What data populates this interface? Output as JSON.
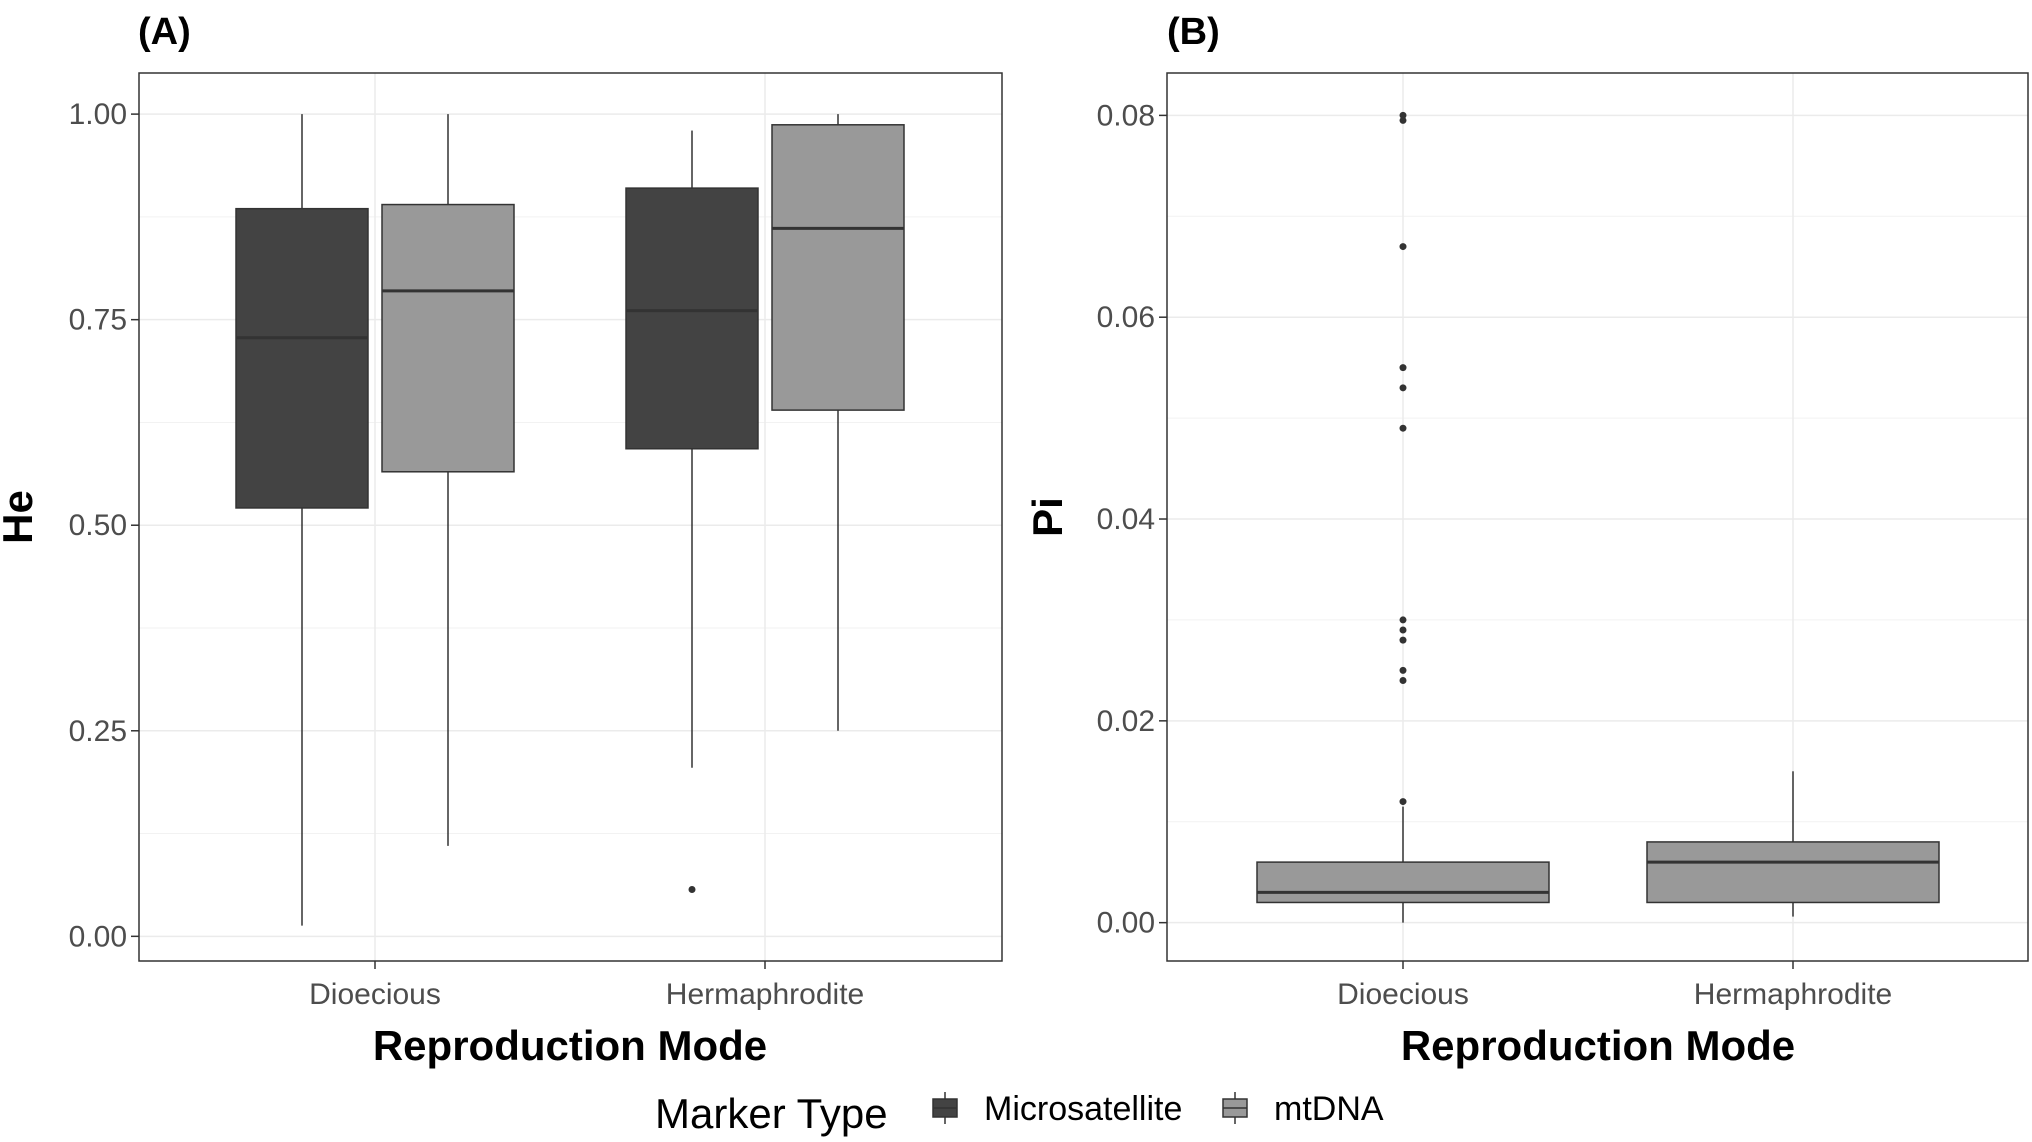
{
  "chart_data": [
    {
      "type": "boxplot",
      "panel_label": "(A)",
      "xlabel": "Reproduction Mode",
      "ylabel": "He",
      "ylim": [
        -0.03,
        1.05
      ],
      "yticks": [
        0.0,
        0.25,
        0.5,
        0.75,
        1.0
      ],
      "ytick_labels": [
        "0.00",
        "0.25",
        "0.50",
        "0.75",
        "1.00"
      ],
      "categories": [
        "Dioecious",
        "Hermaphrodite"
      ],
      "grid": true,
      "series": [
        {
          "name": "Microsatellite",
          "color": "#434343",
          "boxes": [
            {
              "whisker_low": 0.013,
              "q1": 0.521,
              "median": 0.728,
              "q3": 0.885,
              "whisker_high": 1.0,
              "outliers": []
            },
            {
              "whisker_low": 0.205,
              "q1": 0.593,
              "median": 0.761,
              "q3": 0.91,
              "whisker_high": 0.98,
              "outliers": [
                0.057
              ]
            }
          ]
        },
        {
          "name": "mtDNA",
          "color": "#999999",
          "boxes": [
            {
              "whisker_low": 0.11,
              "q1": 0.565,
              "median": 0.785,
              "q3": 0.89,
              "whisker_high": 1.0,
              "outliers": []
            },
            {
              "whisker_low": 0.25,
              "q1": 0.64,
              "median": 0.861,
              "q3": 0.987,
              "whisker_high": 1.0,
              "outliers": []
            }
          ]
        }
      ]
    },
    {
      "type": "boxplot",
      "panel_label": "(B)",
      "xlabel": "Reproduction Mode",
      "ylabel": "Pi",
      "ylim": [
        -0.0038,
        0.0842
      ],
      "yticks": [
        0.0,
        0.02,
        0.04,
        0.06,
        0.08
      ],
      "ytick_labels": [
        "0.00",
        "0.02",
        "0.04",
        "0.06",
        "0.08"
      ],
      "categories": [
        "Dioecious",
        "Hermaphrodite"
      ],
      "grid": true,
      "series": [
        {
          "name": "mtDNA",
          "color": "#999999",
          "boxes": [
            {
              "whisker_low": 0.0,
              "q1": 0.002,
              "median": 0.003,
              "q3": 0.006,
              "whisker_high": 0.0115,
              "outliers": [
                0.012,
                0.024,
                0.025,
                0.028,
                0.029,
                0.03,
                0.049,
                0.053,
                0.055,
                0.067,
                0.0795,
                0.08
              ]
            },
            {
              "whisker_low": 0.0006,
              "q1": 0.002,
              "median": 0.006,
              "q3": 0.008,
              "whisker_high": 0.015,
              "outliers": []
            }
          ]
        }
      ]
    }
  ],
  "legend": {
    "title": "Marker Type",
    "position": "bottom",
    "items": [
      {
        "label": "Microsatellite",
        "color": "#434343"
      },
      {
        "label": "mtDNA",
        "color": "#999999"
      }
    ]
  }
}
